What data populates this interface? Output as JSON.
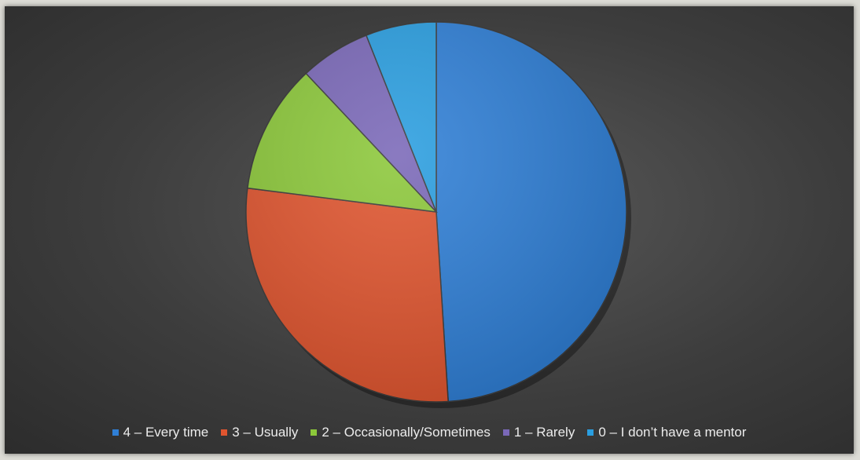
{
  "chart_data": {
    "type": "pie",
    "title": "",
    "slices": [
      {
        "label": "4 – Every time",
        "value": 49,
        "color": "#2f7fd6"
      },
      {
        "label": "3 – Usually",
        "value": 28,
        "color": "#e0552f"
      },
      {
        "label": "2 – Occasionally/Sometimes",
        "value": 11,
        "color": "#8cc83a"
      },
      {
        "label": "1 – Rarely",
        "value": 6,
        "color": "#7a68b8"
      },
      {
        "label": "0 – I don’t have a mentor",
        "value": 6,
        "color": "#2a9ee0"
      }
    ],
    "legend_position": "bottom",
    "start_angle": "top, clockwise"
  }
}
